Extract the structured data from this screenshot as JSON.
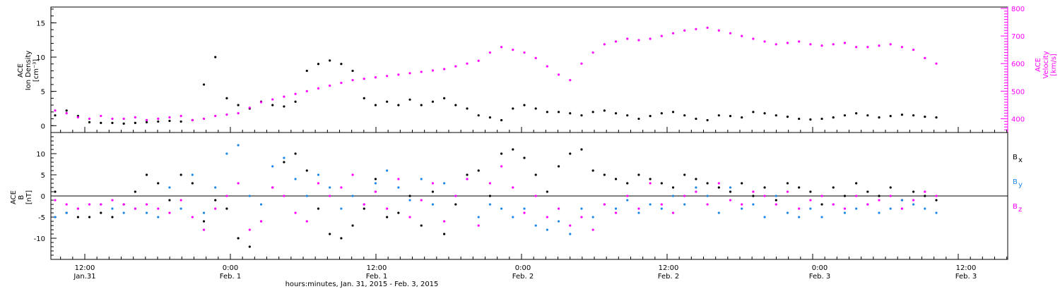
{
  "chart_data": [
    {
      "type": "scatter",
      "panel": "ACE plasma",
      "ylabel_left": [
        "ACE",
        "Ion Density",
        "[cm⁻³]"
      ],
      "ylabel_right": [
        "ACE",
        "Velocity",
        "[km/s]"
      ],
      "ylim_left": [
        -1,
        17.3
      ],
      "ylim_right": [
        350,
        805
      ],
      "y_ticks_left": [
        "0",
        "5",
        "10",
        "15"
      ],
      "y_ticks_right": [
        "400",
        "500",
        "600",
        "700",
        "800"
      ],
      "colors": {
        "density": "#000000",
        "velocity": "#ff00ff"
      },
      "series": [
        {
          "key": "density",
          "color": "#000000",
          "x": [
            0,
            1,
            2,
            3,
            4,
            5,
            6,
            7,
            8,
            9,
            10,
            11,
            12,
            13,
            14,
            15,
            16,
            17,
            18,
            19,
            20,
            21,
            22,
            23,
            24,
            25,
            26,
            27,
            28,
            29,
            30,
            31,
            32,
            33,
            34,
            35,
            36,
            37,
            38,
            39,
            40,
            41,
            42,
            43,
            44,
            45,
            46,
            47,
            48,
            49,
            50,
            51,
            52,
            53,
            54,
            55,
            56,
            57,
            58,
            59,
            60,
            61,
            62,
            63,
            64,
            65,
            66,
            67,
            68,
            69,
            70,
            71,
            72,
            73,
            74,
            75,
            76,
            77
          ],
          "y": [
            1.5,
            2.2,
            1.4,
            0.5,
            0.4,
            0.4,
            0.3,
            0.4,
            0.5,
            0.6,
            0.7,
            0.6,
            0.8,
            6.0,
            10.0,
            4.0,
            3.0,
            2.5,
            3.5,
            3.0,
            2.8,
            3.5,
            8.0,
            9.0,
            9.5,
            9.0,
            8.0,
            4.0,
            3.0,
            3.5,
            3.0,
            3.8,
            3.0,
            3.5,
            4.0,
            3.0,
            2.5,
            1.5,
            1.2,
            0.8,
            2.5,
            3.0,
            2.5,
            2.0,
            2.0,
            1.8,
            1.5,
            2.0,
            2.2,
            1.8,
            1.5,
            1.0,
            1.4,
            1.8,
            2.0,
            1.5,
            1.0,
            0.8,
            1.5,
            1.4,
            1.2,
            2.0,
            1.8,
            1.5,
            1.3,
            1.0,
            0.9,
            1.0,
            1.2,
            1.5,
            1.8,
            1.5,
            1.2,
            1.4,
            1.6,
            1.5,
            1.3,
            1.2
          ]
        },
        {
          "key": "velocity",
          "color": "#ff00ff",
          "x": [
            0,
            1,
            2,
            3,
            4,
            5,
            6,
            7,
            8,
            9,
            10,
            11,
            12,
            13,
            14,
            15,
            16,
            17,
            18,
            19,
            20,
            21,
            22,
            23,
            24,
            25,
            26,
            27,
            28,
            29,
            30,
            31,
            32,
            33,
            34,
            35,
            36,
            37,
            38,
            39,
            40,
            41,
            42,
            43,
            44,
            45,
            46,
            47,
            48,
            49,
            50,
            51,
            52,
            53,
            54,
            55,
            56,
            57,
            58,
            59,
            60,
            61,
            62,
            63,
            64,
            65,
            66,
            67,
            68,
            69,
            70,
            71,
            72,
            73,
            74,
            75,
            76,
            77
          ],
          "y": [
            430,
            420,
            405,
            400,
            410,
            400,
            400,
            405,
            395,
            400,
            405,
            410,
            395,
            400,
            410,
            415,
            420,
            440,
            460,
            470,
            480,
            490,
            500,
            510,
            520,
            530,
            540,
            545,
            550,
            555,
            560,
            565,
            570,
            575,
            580,
            590,
            600,
            610,
            640,
            660,
            650,
            640,
            620,
            590,
            560,
            540,
            600,
            640,
            670,
            680,
            690,
            685,
            690,
            700,
            710,
            720,
            725,
            730,
            720,
            710,
            700,
            690,
            680,
            670,
            675,
            680,
            670,
            665,
            670,
            675,
            660,
            660,
            665,
            670,
            660,
            650,
            620,
            600
          ]
        }
      ],
      "x_ticks": [
        "12:00",
        "0:00",
        "12:00",
        "0:00",
        "12:00",
        "0:00",
        "12:00"
      ],
      "x_dates": [
        "Jan.31",
        "Feb. 1",
        "Feb. 1",
        "Feb. 2",
        "Feb. 2",
        "Feb. 3",
        "Feb. 3"
      ]
    },
    {
      "type": "scatter",
      "panel": "ACE magnetic field",
      "ylabel": [
        "ACE",
        "B",
        "[nT]"
      ],
      "ylim": [
        -15,
        15
      ],
      "y_ticks": [
        "10",
        "5",
        "0",
        "-5",
        "-10"
      ],
      "legend": [
        {
          "label": "B",
          "sub": "x",
          "color": "#000000"
        },
        {
          "label": "B",
          "sub": "y",
          "color": "#1e88e5"
        },
        {
          "label": "B",
          "sub": "z",
          "color": "#ff00ff"
        }
      ],
      "series": [
        {
          "key": "Bx",
          "color": "#000000",
          "x": [
            0,
            1,
            2,
            3,
            4,
            5,
            6,
            7,
            8,
            9,
            10,
            11,
            12,
            13,
            14,
            15,
            16,
            17,
            18,
            19,
            20,
            21,
            22,
            23,
            24,
            25,
            26,
            27,
            28,
            29,
            30,
            31,
            32,
            33,
            34,
            35,
            36,
            37,
            38,
            39,
            40,
            41,
            42,
            43,
            44,
            45,
            46,
            47,
            48,
            49,
            50,
            51,
            52,
            53,
            54,
            55,
            56,
            57,
            58,
            59,
            60,
            61,
            62,
            63,
            64,
            65,
            66,
            67,
            68,
            69,
            70,
            71,
            72,
            73,
            74,
            75,
            76,
            77
          ],
          "y": [
            1,
            -4,
            -5,
            -5,
            -4,
            -5,
            -2,
            1,
            5,
            3,
            -1,
            5,
            3,
            -6,
            -1,
            -3,
            -10,
            -12,
            -6,
            2,
            8,
            10,
            6,
            -3,
            -9,
            -10,
            -7,
            -3,
            4,
            -5,
            -4,
            0,
            -7,
            1,
            -9,
            -2,
            5,
            6,
            0,
            10,
            11,
            9,
            5,
            1,
            7,
            10,
            11,
            6,
            5,
            4,
            3,
            5,
            4,
            3,
            2,
            5,
            4,
            3,
            2,
            1,
            3,
            0,
            2,
            -1,
            3,
            2,
            1,
            -2,
            2,
            0,
            3,
            1,
            0,
            2,
            -1,
            1,
            0,
            -1
          ]
        },
        {
          "key": "By",
          "color": "#1e88e5",
          "x": [
            0,
            1,
            2,
            3,
            4,
            5,
            6,
            7,
            8,
            9,
            10,
            11,
            12,
            13,
            14,
            15,
            16,
            17,
            18,
            19,
            20,
            21,
            22,
            23,
            24,
            25,
            26,
            27,
            28,
            29,
            30,
            31,
            32,
            33,
            34,
            35,
            36,
            37,
            38,
            39,
            40,
            41,
            42,
            43,
            44,
            45,
            46,
            47,
            48,
            49,
            50,
            51,
            52,
            53,
            54,
            55,
            56,
            57,
            58,
            59,
            60,
            61,
            62,
            63,
            64,
            65,
            66,
            67,
            68,
            69,
            70,
            71,
            72,
            73,
            74,
            75,
            76,
            77
          ],
          "y": [
            -5,
            -4,
            -3,
            -2,
            -2,
            -3,
            -4,
            -3,
            -4,
            -5,
            2,
            -3,
            5,
            -4,
            2,
            10,
            12,
            0,
            -2,
            7,
            9,
            4,
            0,
            5,
            2,
            -3,
            0,
            -2,
            3,
            6,
            2,
            -1,
            4,
            -2,
            3,
            0,
            4,
            -5,
            -2,
            -3,
            -5,
            -3,
            -7,
            -8,
            -6,
            -9,
            -3,
            -5,
            -2,
            -3,
            -1,
            -4,
            -2,
            -3,
            0,
            -2,
            2,
            0,
            -4,
            2,
            -3,
            -2,
            -5,
            0,
            -4,
            -5,
            -3,
            -5,
            -2,
            -4,
            -3,
            -2,
            -4,
            -3,
            -1,
            -2,
            -3,
            -4
          ]
        },
        {
          "key": "Bz",
          "color": "#ff00ff",
          "x": [
            0,
            1,
            2,
            3,
            4,
            5,
            6,
            7,
            8,
            9,
            10,
            11,
            12,
            13,
            14,
            15,
            16,
            17,
            18,
            19,
            20,
            21,
            22,
            23,
            24,
            25,
            26,
            27,
            28,
            29,
            30,
            31,
            32,
            33,
            34,
            35,
            36,
            37,
            38,
            39,
            40,
            41,
            42,
            43,
            44,
            45,
            46,
            47,
            48,
            49,
            50,
            51,
            52,
            53,
            54,
            55,
            56,
            57,
            58,
            59,
            60,
            61,
            62,
            63,
            64,
            65,
            66,
            67,
            68,
            69,
            70,
            71,
            72,
            73,
            74,
            75,
            76,
            77
          ],
          "y": [
            -1,
            -2,
            -3,
            -2,
            -2,
            -1,
            -2,
            -3,
            -2,
            -3,
            -4,
            -1,
            -5,
            -8,
            -3,
            0,
            3,
            -8,
            -6,
            2,
            0,
            -4,
            -6,
            3,
            0,
            2,
            5,
            -2,
            1,
            -3,
            4,
            -5,
            -1,
            3,
            -6,
            0,
            4,
            -7,
            3,
            7,
            2,
            -4,
            0,
            -5,
            -3,
            -7,
            -5,
            -8,
            -2,
            -4,
            0,
            -3,
            3,
            -2,
            -4,
            0,
            1,
            -2,
            3,
            -1,
            -2,
            1,
            0,
            -2,
            1,
            -3,
            -1,
            0,
            -2,
            -3,
            0,
            -2,
            -1,
            0,
            -3,
            -1,
            1,
            0
          ]
        }
      ],
      "x_ticks": [
        "12:00",
        "0:00",
        "12:00",
        "0:00",
        "12:00",
        "0:00",
        "12:00"
      ],
      "x_dates": [
        "Jan.31",
        "Feb. 1",
        "Feb. 1",
        "Feb. 2",
        "Feb. 2",
        "Feb. 3",
        "Feb. 3"
      ],
      "xlabel": "hours:minutes, Jan. 31, 2015 - Feb.  3, 2015"
    }
  ]
}
